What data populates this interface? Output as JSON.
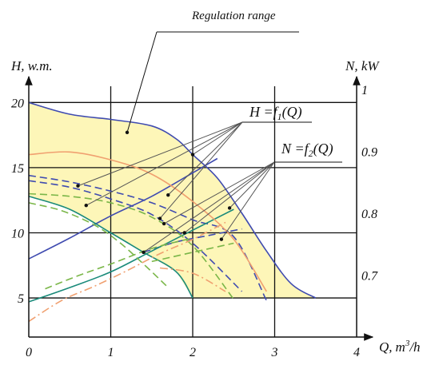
{
  "chart_data": {
    "type": "line",
    "annotation": "Regulation range",
    "x_axis": {
      "label_var": "Q,",
      "label_unit": "m",
      "label_sup": "3",
      "label_tail": "/h",
      "range": [
        0,
        4
      ],
      "ticks": [
        "0",
        "1",
        "2",
        "3",
        "4"
      ]
    },
    "y_axis_left": {
      "label": "H, w.m.",
      "range": [
        2,
        21
      ],
      "ticks": [
        "5",
        "10",
        "15",
        "20"
      ]
    },
    "y_axis_right": {
      "label": "N, kW",
      "range": [
        0.6,
        1.0
      ],
      "ticks": [
        "0.7",
        "0.8",
        "0.9",
        "1"
      ]
    },
    "grid": true,
    "legend": [
      {
        "pre": "H =",
        "fn": "f",
        "sub": "1",
        "post": "(Q)"
      },
      {
        "pre": "N =",
        "fn": "f",
        "sub": "2",
        "post": "(Q)"
      }
    ],
    "fill_color": "#fdf6b8",
    "series": [
      {
        "color": "#3f4bb0",
        "style": "solid",
        "points": [
          [
            0,
            20
          ],
          [
            0.5,
            19.1
          ],
          [
            1,
            18.7
          ],
          [
            1.5,
            18.2
          ],
          [
            1.8,
            17.2
          ],
          [
            2,
            16
          ],
          [
            2.3,
            14.2
          ],
          [
            2.6,
            11.5
          ],
          [
            2.9,
            8.6
          ],
          [
            3.2,
            6.1
          ],
          [
            3.5,
            5
          ]
        ]
      },
      {
        "color": "#3f4bb0",
        "style": "solid",
        "points": [
          [
            0,
            8
          ],
          [
            0.5,
            9.6
          ],
          [
            1,
            11.3
          ],
          [
            1.5,
            12.8
          ],
          [
            2,
            14.6
          ],
          [
            2.3,
            15.7
          ]
        ]
      },
      {
        "color": "#3f4bb0",
        "style": "dashed",
        "points": [
          [
            0,
            14.4
          ],
          [
            0.5,
            13.9
          ],
          [
            1,
            13.2
          ],
          [
            1.5,
            12.3
          ],
          [
            2,
            11
          ],
          [
            2.5,
            9.7
          ],
          [
            2.9,
            4.8
          ]
        ]
      },
      {
        "color": "#3f4bb0",
        "style": "dashed",
        "points": [
          [
            0,
            14
          ],
          [
            0.5,
            13.5
          ],
          [
            1,
            12.6
          ],
          [
            1.5,
            11.4
          ],
          [
            2,
            9.2
          ],
          [
            2.6,
            5.5
          ]
        ]
      },
      {
        "color": "#3f4bb0",
        "style": "dashed",
        "points": [
          [
            1.4,
            8.5
          ],
          [
            1.8,
            9.3
          ],
          [
            2.2,
            9.8
          ],
          [
            2.6,
            10.3
          ]
        ]
      },
      {
        "color": "#1a8a7a",
        "style": "solid",
        "points": [
          [
            0,
            12.8
          ],
          [
            0.5,
            11.8
          ],
          [
            1,
            10
          ],
          [
            1.4,
            8.5
          ],
          [
            1.8,
            7
          ],
          [
            2,
            5
          ]
        ]
      },
      {
        "color": "#1a8a7a",
        "style": "solid",
        "points": [
          [
            0,
            4.7
          ],
          [
            0.5,
            5.8
          ],
          [
            1,
            7
          ],
          [
            1.5,
            8.6
          ],
          [
            2,
            10.2
          ],
          [
            2.5,
            11.8
          ]
        ]
      },
      {
        "color": "#7ab648",
        "style": "dashed",
        "points": [
          [
            0,
            12.3
          ],
          [
            0.4,
            11.7
          ],
          [
            0.8,
            10.6
          ],
          [
            1.1,
            9.3
          ],
          [
            1.4,
            7.6
          ],
          [
            1.7,
            5.8
          ]
        ]
      },
      {
        "color": "#7ab648",
        "style": "dashed",
        "points": [
          [
            0.2,
            5.7
          ],
          [
            0.6,
            6.7
          ],
          [
            1,
            7.6
          ],
          [
            1.5,
            8.8
          ],
          [
            2,
            9.6
          ]
        ]
      },
      {
        "color": "#7ab648",
        "style": "dashed",
        "points": [
          [
            0,
            13
          ],
          [
            0.5,
            12.8
          ],
          [
            1,
            12.3
          ],
          [
            1.5,
            11.2
          ],
          [
            2,
            9
          ],
          [
            2.5,
            4.9
          ]
        ]
      },
      {
        "color": "#7ab648",
        "style": "dashed",
        "points": [
          [
            1.5,
            7.8
          ],
          [
            2,
            8.5
          ],
          [
            2.5,
            9.2
          ]
        ]
      },
      {
        "color": "#f0a070",
        "style": "solid",
        "points": [
          [
            0,
            16
          ],
          [
            0.5,
            16.2
          ],
          [
            1,
            15.6
          ],
          [
            1.5,
            14.5
          ],
          [
            2,
            12.4
          ],
          [
            2.5,
            9.5
          ],
          [
            2.9,
            5.5
          ]
        ]
      },
      {
        "color": "#f0a070",
        "style": "dashdot",
        "points": [
          [
            0,
            3.2
          ],
          [
            0.4,
            4.8
          ],
          [
            0.8,
            5.9
          ],
          [
            1.2,
            7.1
          ],
          [
            1.6,
            8.4
          ],
          [
            2,
            9.5
          ],
          [
            2.4,
            10.8
          ]
        ]
      },
      {
        "color": "#f0a070",
        "style": "dashdot",
        "points": [
          [
            1.6,
            7.3
          ],
          [
            2,
            6.9
          ],
          [
            2.4,
            5.5
          ]
        ]
      }
    ],
    "markers": [
      [
        1.2,
        17.7
      ],
      [
        2,
        16
      ],
      [
        1.7,
        12.9
      ],
      [
        0.6,
        13.6
      ],
      [
        0.7,
        12.1
      ],
      [
        1.6,
        11.1
      ],
      [
        1.65,
        10.7
      ],
      [
        1.9,
        10
      ],
      [
        1.4,
        8.5
      ],
      [
        2.45,
        11.9
      ],
      [
        2.35,
        9.5
      ]
    ]
  }
}
